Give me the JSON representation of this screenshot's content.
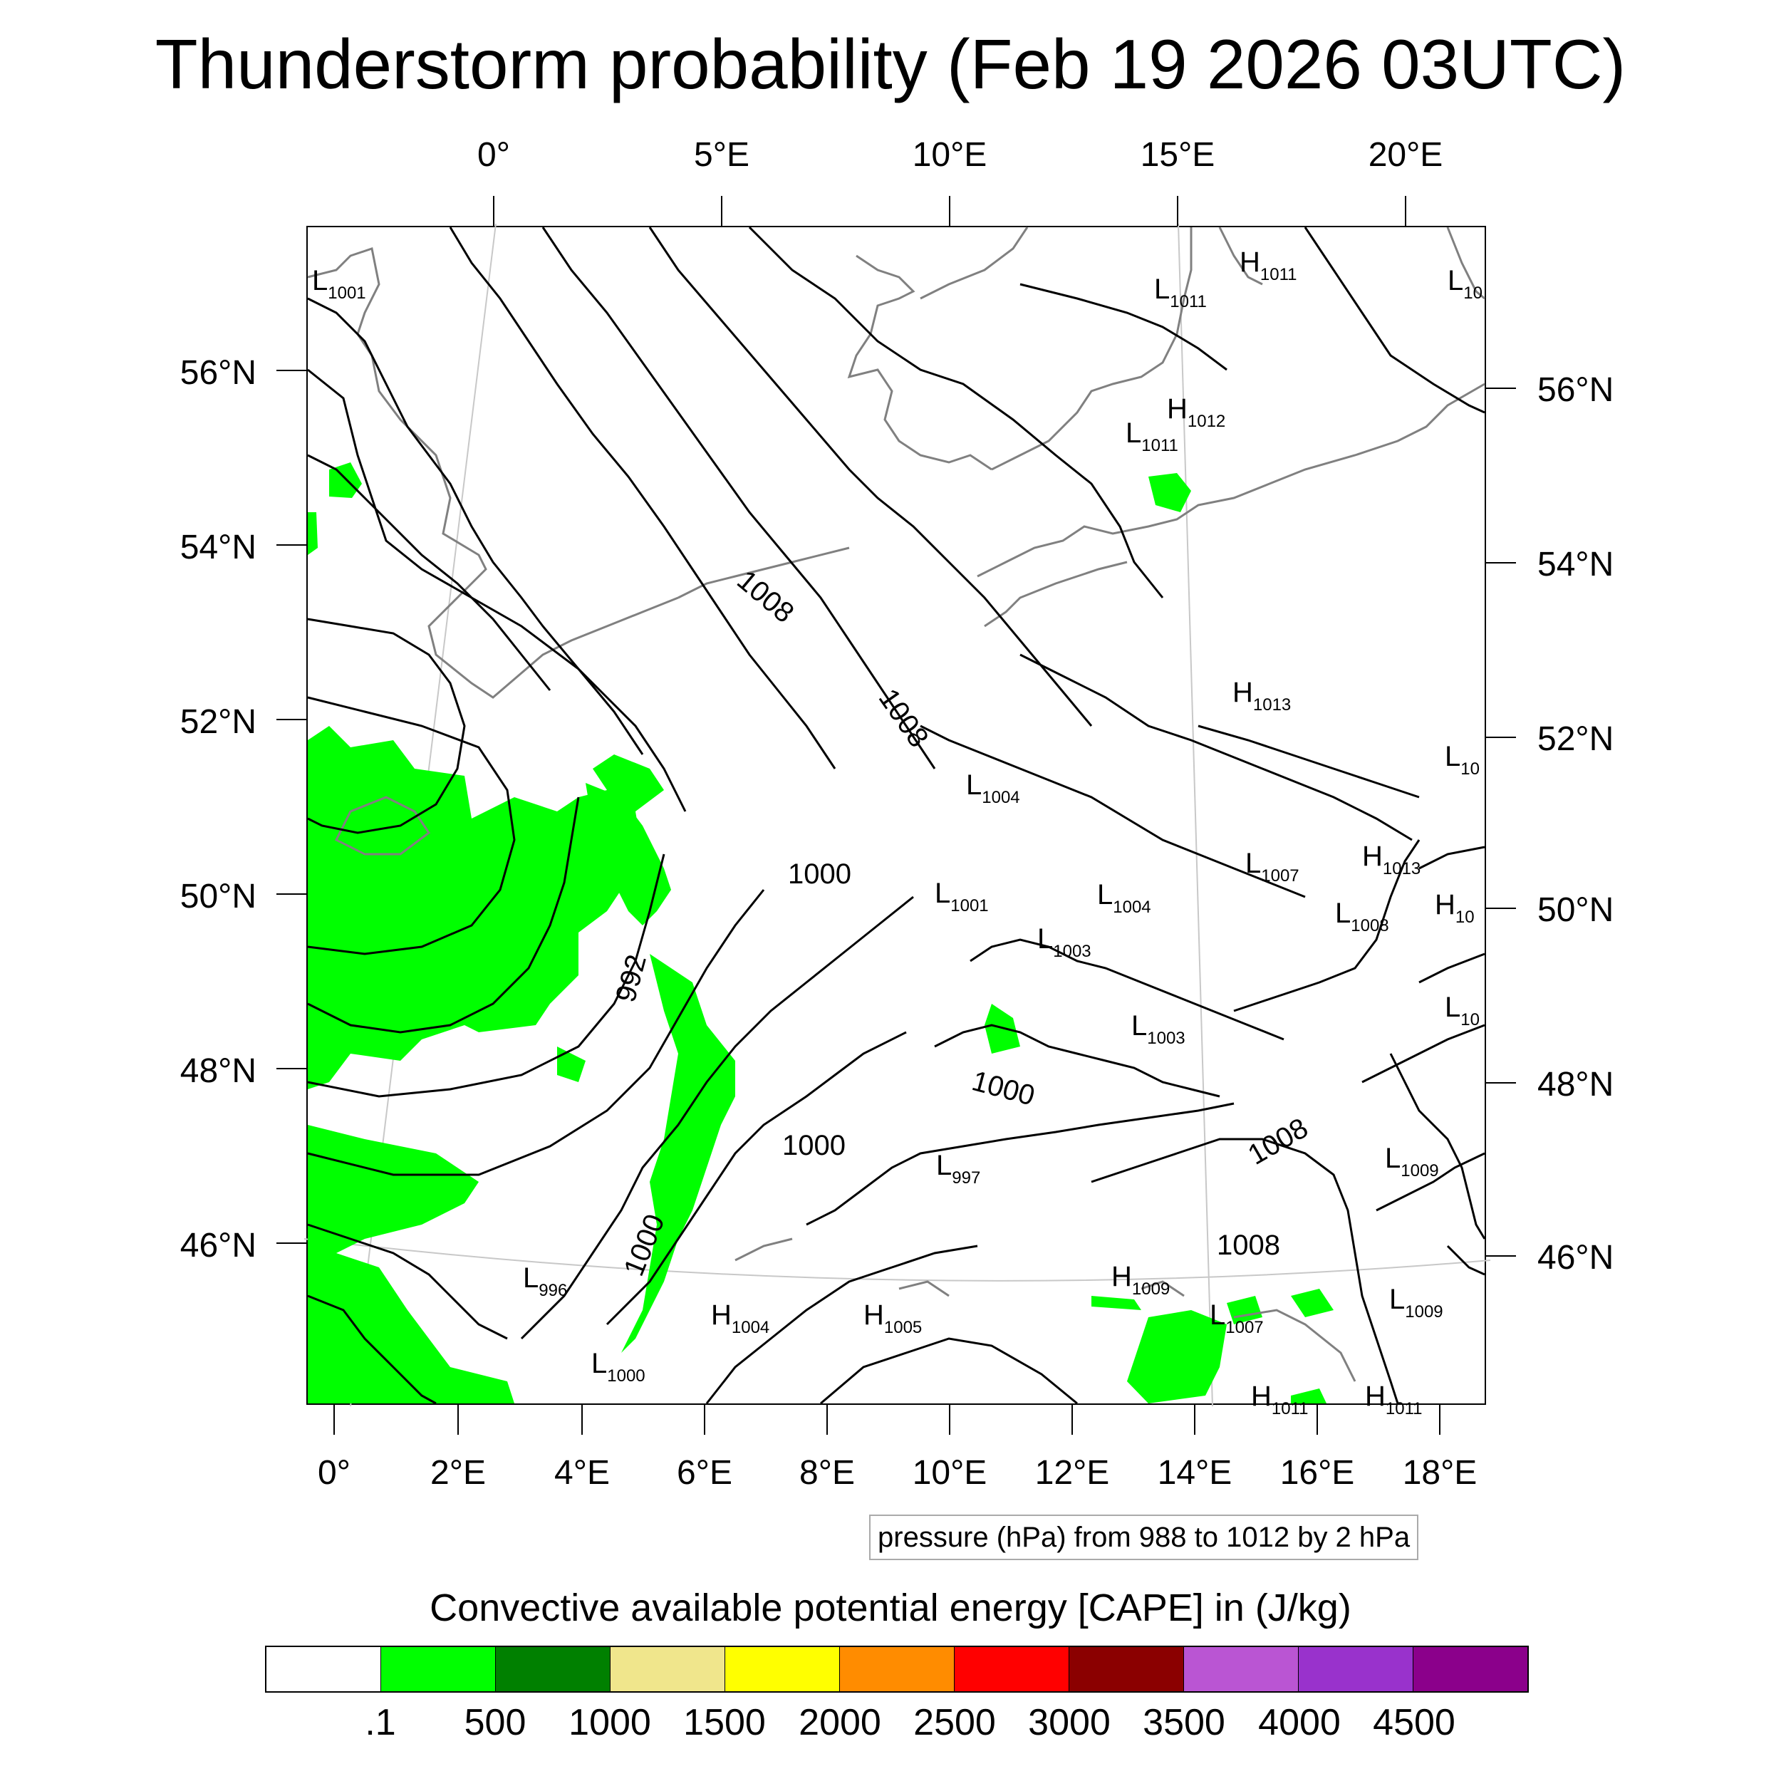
{
  "title": "Thunderstorm probability (Feb 19 2026 03UTC)",
  "axes": {
    "top_lon": [
      "0°",
      "5°E",
      "10°E",
      "15°E",
      "20°E"
    ],
    "bottom_lon": [
      "0°",
      "2°E",
      "4°E",
      "6°E",
      "8°E",
      "10°E",
      "12°E",
      "14°E",
      "16°E",
      "18°E"
    ],
    "left_lat": [
      "56°N",
      "54°N",
      "52°N",
      "50°N",
      "48°N",
      "46°N"
    ],
    "right_lat": [
      "56°N",
      "54°N",
      "52°N",
      "50°N",
      "48°N",
      "46°N"
    ]
  },
  "contour_info": "pressure (hPa) from 988 to 1012 by 2 hPa",
  "colorbar": {
    "title": "Convective available potential energy [CAPE] in (J/kg)",
    "colors": [
      "#ffffff",
      "#00ff00",
      "#008000",
      "#f0e68c",
      "#ffff00",
      "#ff8c00",
      "#ff0000",
      "#8b0000",
      "#ba55d3",
      "#9932cc",
      "#8b008b"
    ],
    "labels": [
      ".1",
      "500",
      "1000",
      "1500",
      "2000",
      "2500",
      "3000",
      "3500",
      "4000",
      "4500"
    ]
  },
  "isobar_labels": [
    "1008",
    "1008",
    "1000",
    "992",
    "1000",
    "1000",
    "1000",
    "1008",
    "1008"
  ],
  "pressure_centers": [
    {
      "type": "L",
      "value": "1001"
    },
    {
      "type": "L",
      "value": "1011"
    },
    {
      "type": "H",
      "value": "1011"
    },
    {
      "type": "L",
      "value": "10"
    },
    {
      "type": "H",
      "value": "1012"
    },
    {
      "type": "L",
      "value": "1011"
    },
    {
      "type": "H",
      "value": "1013"
    },
    {
      "type": "L",
      "value": "10"
    },
    {
      "type": "L",
      "value": "1004"
    },
    {
      "type": "L",
      "value": "1007"
    },
    {
      "type": "H",
      "value": "1013"
    },
    {
      "type": "L",
      "value": "1001"
    },
    {
      "type": "L",
      "value": "1004"
    },
    {
      "type": "L",
      "value": "1008"
    },
    {
      "type": "H",
      "value": "10"
    },
    {
      "type": "L",
      "value": "1003"
    },
    {
      "type": "L",
      "value": "1003"
    },
    {
      "type": "L",
      "value": "10"
    },
    {
      "type": "L",
      "value": "997"
    },
    {
      "type": "L",
      "value": "1009"
    },
    {
      "type": "L",
      "value": "996"
    },
    {
      "type": "H",
      "value": "1004"
    },
    {
      "type": "H",
      "value": "1005"
    },
    {
      "type": "H",
      "value": "1009"
    },
    {
      "type": "L",
      "value": "1007"
    },
    {
      "type": "L",
      "value": "1009"
    },
    {
      "type": "L",
      "value": "1000"
    },
    {
      "type": "H",
      "value": "1011"
    },
    {
      "type": "H",
      "value": "1011"
    }
  ]
}
